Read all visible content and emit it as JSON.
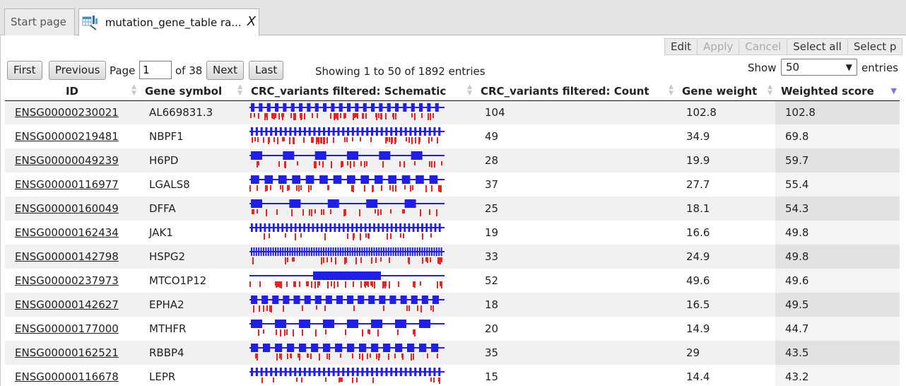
{
  "tabs": {
    "start_label": "Start page",
    "active_label": "mutation_gene_table ra...",
    "close_glyph": "X"
  },
  "edit_bar": {
    "edit": "Edit",
    "apply": "Apply",
    "cancel": "Cancel",
    "select_all": "Select all",
    "select_p": "Select p"
  },
  "pager": {
    "first": "First",
    "previous": "Previous",
    "page_label": "Page",
    "page_value": "1",
    "of_label": "of 38",
    "next": "Next",
    "last": "Last",
    "showing": "Showing 1 to 50 of 1892 entries",
    "show_label": "Show",
    "show_value": "50",
    "entries_label": "entries"
  },
  "table": {
    "columns": [
      "ID",
      "Gene symbol",
      "CRC_variants filtered: Schematic",
      "CRC_variants filtered: Count",
      "Gene weight",
      "Weighted score"
    ],
    "rows": [
      {
        "id": "ENSG00000230021",
        "symbol": "AL669831.3",
        "count": "104",
        "weight": "102.8",
        "score": "102.8"
      },
      {
        "id": "ENSG00000219481",
        "symbol": "NBPF1",
        "count": "49",
        "weight": "34.9",
        "score": "69.8"
      },
      {
        "id": "ENSG00000049239",
        "symbol": "H6PD",
        "count": "28",
        "weight": "19.9",
        "score": "59.7"
      },
      {
        "id": "ENSG00000116977",
        "symbol": "LGALS8",
        "count": "37",
        "weight": "27.7",
        "score": "55.4"
      },
      {
        "id": "ENSG00000160049",
        "symbol": "DFFA",
        "count": "25",
        "weight": "18.1",
        "score": "54.3"
      },
      {
        "id": "ENSG00000162434",
        "symbol": "JAK1",
        "count": "19",
        "weight": "16.6",
        "score": "49.8"
      },
      {
        "id": "ENSG00000142798",
        "symbol": "HSPG2",
        "count": "33",
        "weight": "24.9",
        "score": "49.8"
      },
      {
        "id": "ENSG00000237973",
        "symbol": "MTCO1P12",
        "count": "52",
        "weight": "49.6",
        "score": "49.6"
      },
      {
        "id": "ENSG00000142627",
        "symbol": "EPHA2",
        "count": "18",
        "weight": "16.5",
        "score": "49.5"
      },
      {
        "id": "ENSG00000177000",
        "symbol": "MTHFR",
        "count": "20",
        "weight": "14.9",
        "score": "44.7"
      },
      {
        "id": "ENSG00000162521",
        "symbol": "RBBP4",
        "count": "35",
        "weight": "29",
        "score": "43.5"
      },
      {
        "id": "ENSG00000116678",
        "symbol": "LEPR",
        "count": "15",
        "weight": "14.4",
        "score": "43.2"
      }
    ]
  },
  "colors": {
    "exon": "#1f1fe6",
    "variant": "#ee2020",
    "sort_active": "#6d7fd4"
  }
}
